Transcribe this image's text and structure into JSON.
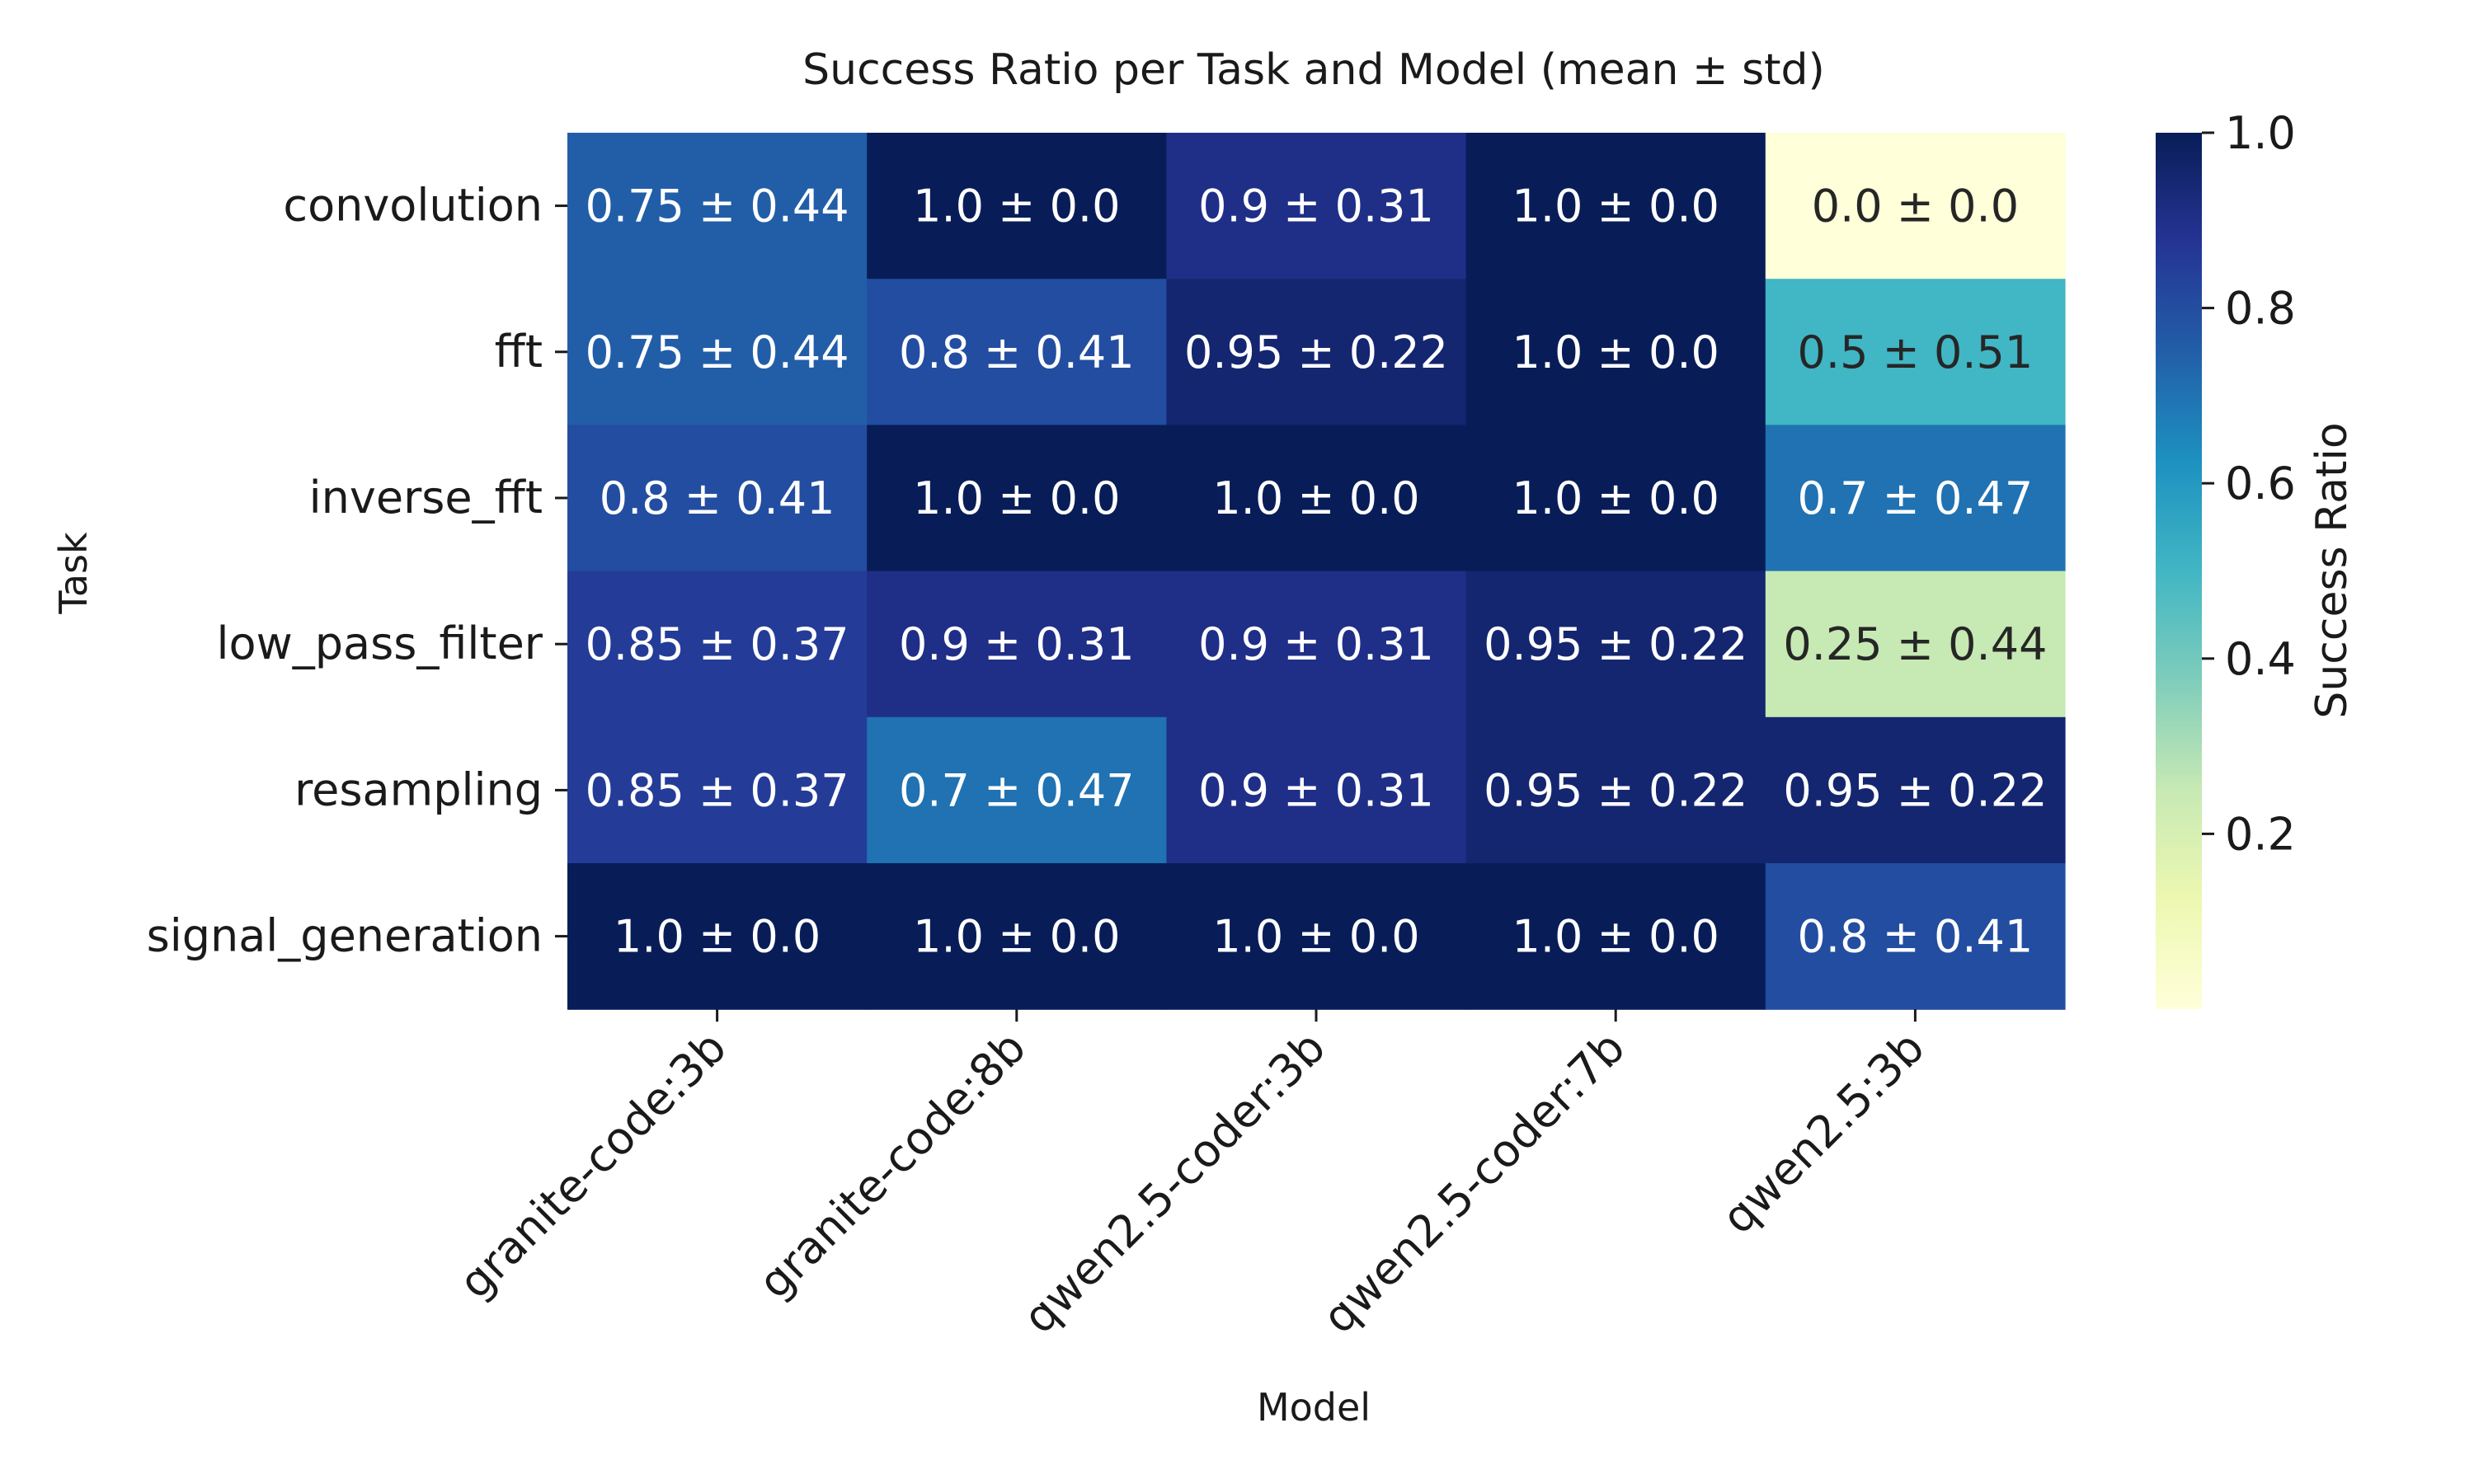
{
  "chart_data": {
    "type": "heatmap",
    "title": "Success Ratio per Task and Model (mean ± std)",
    "xlabel": "Model",
    "ylabel": "Task",
    "x_categories": [
      "granite-code:3b",
      "granite-code:8b",
      "qwen2.5-coder:3b",
      "qwen2.5-coder:7b",
      "qwen2.5:3b"
    ],
    "y_categories": [
      "convolution",
      "fft",
      "inverse_fft",
      "low_pass_filter",
      "resampling",
      "signal_generation"
    ],
    "values": [
      [
        0.75,
        1.0,
        0.9,
        1.0,
        0.0
      ],
      [
        0.75,
        0.8,
        0.95,
        1.0,
        0.5
      ],
      [
        0.8,
        1.0,
        1.0,
        1.0,
        0.7
      ],
      [
        0.85,
        0.9,
        0.9,
        0.95,
        0.25
      ],
      [
        0.85,
        0.7,
        0.9,
        0.95,
        0.95
      ],
      [
        1.0,
        1.0,
        1.0,
        1.0,
        0.8
      ]
    ],
    "annotations": [
      [
        "0.75 ± 0.44",
        "1.0 ± 0.0",
        "0.9 ± 0.31",
        "1.0 ± 0.0",
        "0.0 ± 0.0"
      ],
      [
        "0.75 ± 0.44",
        "0.8 ± 0.41",
        "0.95 ± 0.22",
        "1.0 ± 0.0",
        "0.5 ± 0.51"
      ],
      [
        "0.8 ± 0.41",
        "1.0 ± 0.0",
        "1.0 ± 0.0",
        "1.0 ± 0.0",
        "0.7 ± 0.47"
      ],
      [
        "0.85 ± 0.37",
        "0.9 ± 0.31",
        "0.9 ± 0.31",
        "0.95 ± 0.22",
        "0.25 ± 0.44"
      ],
      [
        "0.85 ± 0.37",
        "0.7 ± 0.47",
        "0.9 ± 0.31",
        "0.95 ± 0.22",
        "0.95 ± 0.22"
      ],
      [
        "1.0 ± 0.0",
        "1.0 ± 0.0",
        "1.0 ± 0.0",
        "1.0 ± 0.0",
        "0.8 ± 0.41"
      ]
    ],
    "colorbar": {
      "label": "Success Ratio",
      "ticks": [
        0.2,
        0.4,
        0.6,
        0.8,
        1.0
      ],
      "tick_labels": [
        "0.2",
        "0.4",
        "0.6",
        "0.8",
        "1.0"
      ],
      "range": [
        0.0,
        1.0
      ],
      "colormap": "YlGnBu"
    },
    "grid": false
  }
}
